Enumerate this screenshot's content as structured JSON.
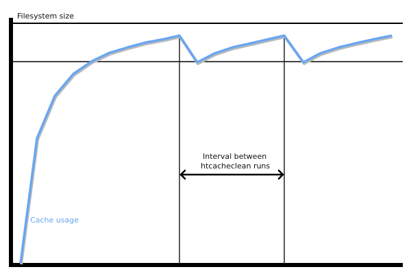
{
  "labels": {
    "y_axis": "Filesystem size",
    "interval_line1": "Interval between",
    "interval_line2": "htcacheclean runs",
    "series": "Cache usage"
  },
  "colors": {
    "curve": "#6aa6f0",
    "axes": "#000000",
    "label_series": "#6aa6f0"
  }
}
